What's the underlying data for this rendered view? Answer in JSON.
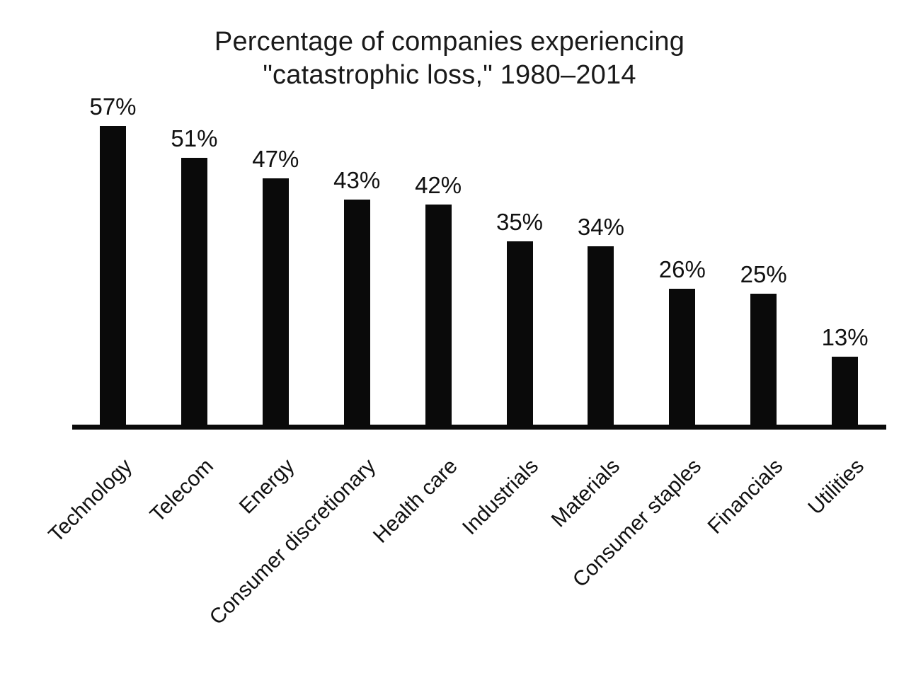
{
  "chart_data": {
    "type": "bar",
    "title": "Percentage of companies experiencing \"catastrophic loss,\" 1980–2014",
    "title_lines": [
      "Percentage of companies experiencing",
      "\"catastrophic loss,\" 1980–2014"
    ],
    "categories": [
      "Technology",
      "Telecom",
      "Energy",
      "Consumer discretionary",
      "Health care",
      "Industrials",
      "Materials",
      "Consumer staples",
      "Financials",
      "Utilities"
    ],
    "values": [
      57,
      51,
      47,
      43,
      42,
      35,
      34,
      26,
      25,
      13
    ],
    "value_labels": [
      "57%",
      "51%",
      "47%",
      "43%",
      "42%",
      "35%",
      "34%",
      "26%",
      "25%",
      "13%"
    ],
    "value_label_format": "{value}%",
    "xlabel": "",
    "ylabel": "",
    "ylim": [
      0,
      60
    ],
    "grid": false,
    "legend": null,
    "x_tick_rotation_deg": 45,
    "bar_color": "#0a0a0a",
    "axis_color": "#0a0a0a",
    "text_color": "#1a1a1a",
    "background_color": "#ffffff"
  }
}
